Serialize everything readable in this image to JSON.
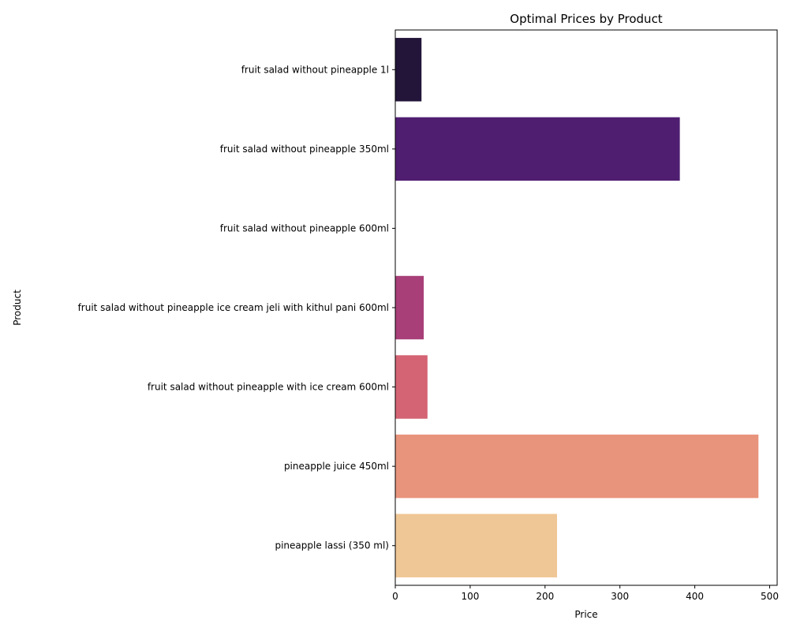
{
  "chart_data": {
    "type": "bar",
    "orientation": "horizontal",
    "title": "Optimal Prices by Product",
    "xlabel": "Price",
    "ylabel": "Product",
    "xlim": [
      0,
      510
    ],
    "xticks": [
      0,
      100,
      200,
      300,
      400,
      500
    ],
    "xtick_labels": [
      "0",
      "100",
      "200",
      "300",
      "400",
      "500"
    ],
    "grid": false,
    "categories": [
      "fruit salad without pineapple 1l",
      "fruit salad without pineapple 350ml",
      "fruit salad without pineapple 600ml",
      "fruit salad without pineapple ice cream jeli with kithul pani 600ml",
      "fruit salad without pineapple with ice cream 600ml",
      "pineapple juice 450ml",
      "pineapple lassi (350 ml)"
    ],
    "values": [
      35,
      380,
      0,
      38,
      43,
      485,
      216
    ],
    "colors": [
      "#221539",
      "#4f1e71",
      "#83247b",
      "#a83f78",
      "#d46373",
      "#e8937b",
      "#efc695"
    ]
  }
}
